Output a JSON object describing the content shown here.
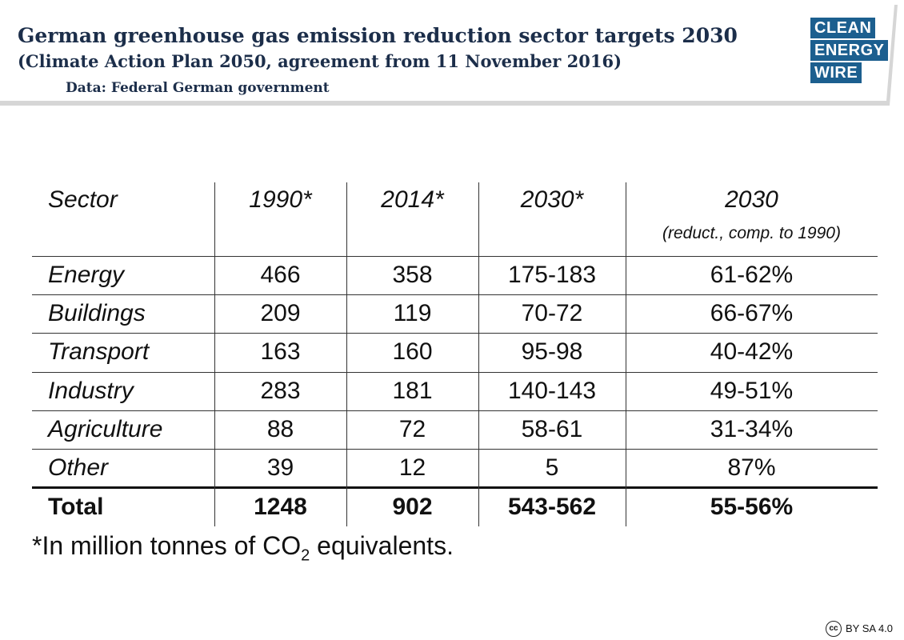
{
  "header": {
    "title": "German greenhouse gas emission reduction sector targets 2030",
    "subtitle": "(Climate Action Plan 2050, agreement from 11 November 2016)",
    "source": "Data: Federal German government"
  },
  "logo": {
    "lines": [
      "CLEAN",
      "ENERGY",
      "WIRE"
    ]
  },
  "table": {
    "columns": [
      {
        "label": "Sector"
      },
      {
        "label": "1990*"
      },
      {
        "label": "2014*"
      },
      {
        "label": "2030*"
      },
      {
        "label": "2030",
        "note": "(reduct., comp. to 1990)"
      }
    ],
    "rows": [
      [
        "Energy",
        "466",
        "358",
        "175-183",
        "61-62%"
      ],
      [
        "Buildings",
        "209",
        "119",
        "70-72",
        "66-67%"
      ],
      [
        "Transport",
        "163",
        "160",
        "95-98",
        "40-42%"
      ],
      [
        "Industry",
        "283",
        "181",
        "140-143",
        "49-51%"
      ],
      [
        "Agriculture",
        "88",
        "72",
        "58-61",
        "31-34%"
      ],
      [
        "Other",
        "39",
        "12",
        "5",
        "87%"
      ]
    ],
    "total": [
      "Total",
      "1248",
      "902",
      "543-562",
      "55-56%"
    ]
  },
  "footnote": {
    "text": "*In million tonnes of CO",
    "subscript": "2",
    "suffix": " equivalents."
  },
  "license": {
    "icon": "cc",
    "text": "BY SA 4.0"
  }
}
